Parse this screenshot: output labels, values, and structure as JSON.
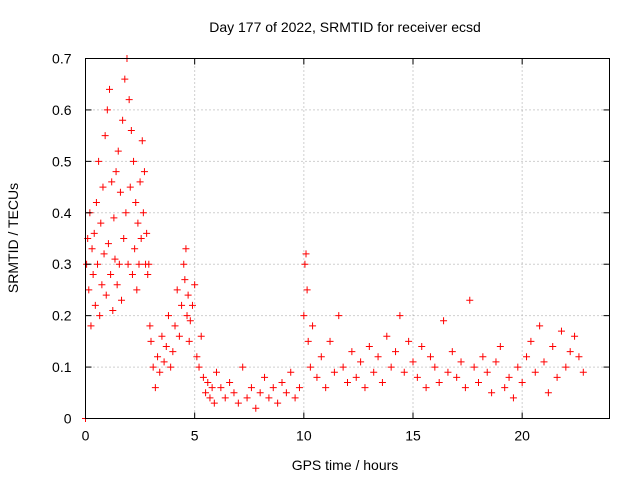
{
  "chart_data": {
    "type": "scatter",
    "title": "Day 177 of 2022, SRMTID for receiver ecsd",
    "xlabel": "GPS time / hours",
    "ylabel": "SRMTID / TECUs",
    "xlim": [
      0,
      24
    ],
    "ylim": [
      0,
      0.7
    ],
    "grid": true,
    "marker": "plus",
    "color": "#ff0000",
    "x_ticks": [
      0,
      5,
      10,
      15,
      20
    ],
    "x_tick_labels": [
      "0",
      "5",
      "10",
      "15",
      "20"
    ],
    "y_ticks": [
      0,
      0.1,
      0.2,
      0.3,
      0.4,
      0.5,
      0.6,
      0.7
    ],
    "y_tick_labels": [
      "0",
      "0.1",
      "0.2",
      "0.3",
      "0.4",
      "0.5",
      "0.6",
      "0.7"
    ],
    "series": [
      {
        "name": "SRMTID",
        "x": [
          0.0,
          0.05,
          0.1,
          0.15,
          0.2,
          0.25,
          0.3,
          0.35,
          0.4,
          0.45,
          0.5,
          0.55,
          0.6,
          0.65,
          0.7,
          0.75,
          0.8,
          0.85,
          0.9,
          0.95,
          1.0,
          1.05,
          1.1,
          1.15,
          1.2,
          1.25,
          1.3,
          1.35,
          1.4,
          1.45,
          1.5,
          1.55,
          1.6,
          1.65,
          1.7,
          1.75,
          1.8,
          1.85,
          1.9,
          1.95,
          2.0,
          2.05,
          2.1,
          2.15,
          2.2,
          2.25,
          2.3,
          2.35,
          2.4,
          2.45,
          2.5,
          2.55,
          2.6,
          2.65,
          2.7,
          2.75,
          2.8,
          2.85,
          2.9,
          2.95,
          3.0,
          3.1,
          3.2,
          3.3,
          3.4,
          3.5,
          3.6,
          3.7,
          3.8,
          3.9,
          4.0,
          4.1,
          4.2,
          4.3,
          4.4,
          4.5,
          4.55,
          4.6,
          4.65,
          4.7,
          4.75,
          4.8,
          4.9,
          5.0,
          5.1,
          5.2,
          5.3,
          5.4,
          5.5,
          5.6,
          5.7,
          5.8,
          5.9,
          6.0,
          6.2,
          6.4,
          6.6,
          6.8,
          7.0,
          7.2,
          7.4,
          7.6,
          7.8,
          8.0,
          8.2,
          8.4,
          8.6,
          8.8,
          9.0,
          9.2,
          9.4,
          9.6,
          9.8,
          10.0,
          10.05,
          10.1,
          10.15,
          10.2,
          10.3,
          10.4,
          10.6,
          10.8,
          11.0,
          11.2,
          11.4,
          11.6,
          11.8,
          12.0,
          12.2,
          12.4,
          12.6,
          12.8,
          13.0,
          13.2,
          13.4,
          13.6,
          13.8,
          14.0,
          14.2,
          14.4,
          14.6,
          14.8,
          15.0,
          15.2,
          15.4,
          15.6,
          15.8,
          16.0,
          16.2,
          16.4,
          16.6,
          16.8,
          17.0,
          17.2,
          17.4,
          17.6,
          17.8,
          18.0,
          18.2,
          18.4,
          18.6,
          18.8,
          19.0,
          19.2,
          19.4,
          19.6,
          19.8,
          20.0,
          20.2,
          20.4,
          20.6,
          20.8,
          21.0,
          21.2,
          21.4,
          21.6,
          21.8,
          22.0,
          22.2,
          22.4,
          22.6,
          22.8
        ],
        "y": [
          0.0,
          0.3,
          0.35,
          0.25,
          0.4,
          0.18,
          0.33,
          0.28,
          0.36,
          0.22,
          0.42,
          0.3,
          0.5,
          0.2,
          0.38,
          0.26,
          0.45,
          0.32,
          0.55,
          0.24,
          0.6,
          0.34,
          0.64,
          0.28,
          0.46,
          0.21,
          0.39,
          0.31,
          0.48,
          0.26,
          0.52,
          0.3,
          0.44,
          0.23,
          0.58,
          0.35,
          0.66,
          0.4,
          0.7,
          0.3,
          0.62,
          0.45,
          0.56,
          0.28,
          0.5,
          0.33,
          0.42,
          0.25,
          0.38,
          0.3,
          0.46,
          0.35,
          0.54,
          0.4,
          0.48,
          0.3,
          0.36,
          0.28,
          0.3,
          0.18,
          0.15,
          0.1,
          0.06,
          0.12,
          0.09,
          0.16,
          0.11,
          0.14,
          0.2,
          0.1,
          0.13,
          0.18,
          0.25,
          0.16,
          0.22,
          0.3,
          0.27,
          0.33,
          0.2,
          0.24,
          0.15,
          0.19,
          0.22,
          0.26,
          0.12,
          0.1,
          0.16,
          0.08,
          0.05,
          0.07,
          0.04,
          0.06,
          0.03,
          0.09,
          0.06,
          0.04,
          0.07,
          0.05,
          0.03,
          0.1,
          0.04,
          0.06,
          0.02,
          0.05,
          0.08,
          0.04,
          0.06,
          0.03,
          0.07,
          0.05,
          0.09,
          0.04,
          0.06,
          0.2,
          0.3,
          0.32,
          0.25,
          0.15,
          0.1,
          0.18,
          0.08,
          0.12,
          0.06,
          0.15,
          0.09,
          0.2,
          0.1,
          0.07,
          0.13,
          0.08,
          0.11,
          0.06,
          0.14,
          0.09,
          0.12,
          0.07,
          0.16,
          0.1,
          0.13,
          0.2,
          0.09,
          0.15,
          0.11,
          0.08,
          0.14,
          0.06,
          0.12,
          0.1,
          0.07,
          0.19,
          0.09,
          0.13,
          0.08,
          0.11,
          0.06,
          0.23,
          0.1,
          0.07,
          0.12,
          0.09,
          0.05,
          0.11,
          0.14,
          0.06,
          0.08,
          0.04,
          0.1,
          0.07,
          0.12,
          0.15,
          0.09,
          0.18,
          0.11,
          0.05,
          0.14,
          0.08,
          0.17,
          0.1,
          0.13,
          0.16,
          0.12,
          0.09
        ]
      }
    ]
  }
}
